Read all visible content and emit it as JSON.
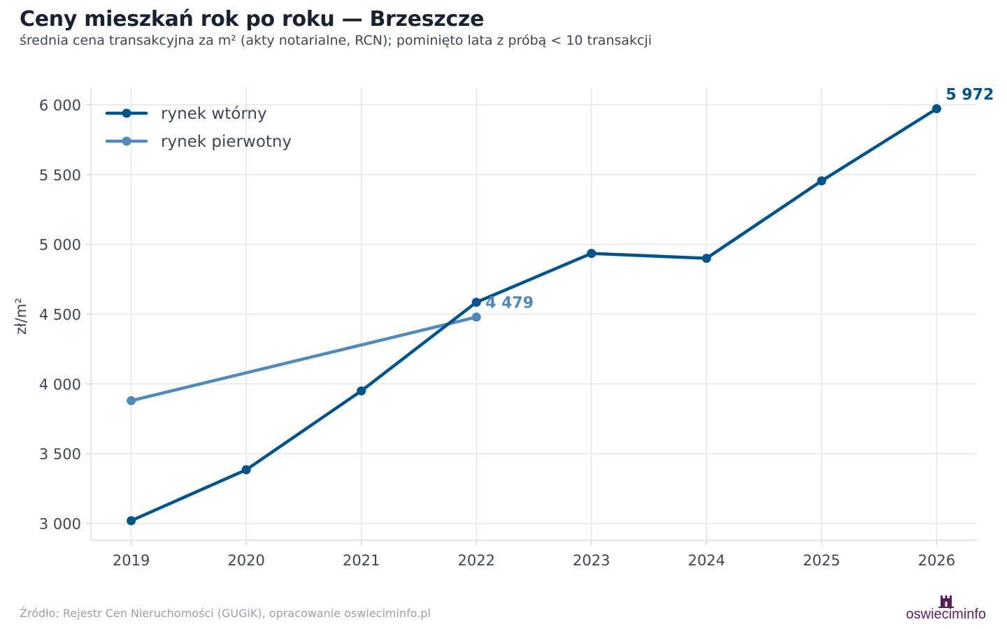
{
  "header": {
    "title": "Ceny mieszkań rok po roku — Brzeszcze",
    "subtitle": "średnia cena transakcyjna za m² (akty notarialne, RCN); pominięto lata z próbą < 10 transakcji"
  },
  "footer": {
    "source": "Źródło: Rejestr Cen Nieruchomości (GUGiK), opracowanie oswieciminfo.pl",
    "logo": "oswiecim",
    "logo_suffix": "info"
  },
  "colors": {
    "secondary": "#00548a",
    "primary": "#5089ba",
    "grid": "#e6e6e6",
    "logo": "#5a1f5a"
  },
  "chart_data": {
    "type": "line",
    "title": "Ceny mieszkań rok po roku — Brzeszcze",
    "subtitle": "średnia cena transakcyjna za m² (akty notarialne, RCN); pominięto lata z próbą < 10 transakcji",
    "xlabel": "",
    "ylabel": "zł/m²",
    "x": [
      2019,
      2020,
      2021,
      2022,
      2023,
      2024,
      2025,
      2026
    ],
    "xlim": [
      2018.65,
      2026.35
    ],
    "ylim": [
      2880,
      6120
    ],
    "yticks": [
      3000,
      3500,
      4000,
      4500,
      5000,
      5500,
      6000
    ],
    "ytick_labels": [
      "3 000",
      "3 500",
      "4 000",
      "4 500",
      "5 000",
      "5 500",
      "6 000"
    ],
    "xtick_labels": [
      "2019",
      "2020",
      "2021",
      "2022",
      "2023",
      "2024",
      "2025",
      "2026"
    ],
    "grid": true,
    "legend": "top-left",
    "series": [
      {
        "name": "rynek wtórny",
        "color": "#00548a",
        "x": [
          2019,
          2020,
          2021,
          2022,
          2023,
          2024,
          2025,
          2026
        ],
        "values": [
          3020,
          3385,
          3950,
          4585,
          4935,
          4900,
          5455,
          5972
        ],
        "end_label": "5 972"
      },
      {
        "name": "rynek pierwotny",
        "color": "#5089ba",
        "x": [
          2019,
          2022
        ],
        "values": [
          3880,
          4479
        ],
        "end_label": "4 479"
      }
    ]
  }
}
